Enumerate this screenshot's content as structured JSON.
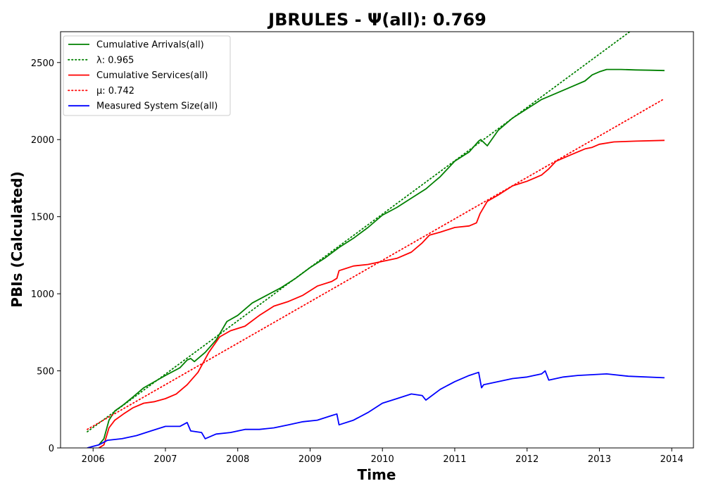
{
  "chart_data": {
    "type": "line",
    "title": "JBRULES -  Ψ(all): 0.769",
    "xlabel": "Time",
    "ylabel": "PBIs (Calculated)",
    "xlim": [
      2005.55,
      2014.3
    ],
    "ylim": [
      0,
      2700
    ],
    "xticks": [
      2006,
      2007,
      2008,
      2009,
      2010,
      2011,
      2012,
      2013,
      2014
    ],
    "xtick_labels": [
      "2006",
      "2007",
      "2008",
      "2009",
      "2010",
      "2011",
      "2012",
      "2013",
      "2014"
    ],
    "yticks": [
      0,
      500,
      1000,
      1500,
      2000,
      2500
    ],
    "ytick_labels": [
      "0",
      "500",
      "1000",
      "1500",
      "2000",
      "2500"
    ],
    "grid": false,
    "legend_position": "top-left",
    "series": [
      {
        "name": "Cumulative Arrivals(all)",
        "style": "solid",
        "color": "#008000",
        "x": [
          2006.08,
          2006.15,
          2006.22,
          2006.3,
          2006.42,
          2006.55,
          2006.7,
          2006.85,
          2007.0,
          2007.2,
          2007.3,
          2007.35,
          2007.4,
          2007.55,
          2007.7,
          2007.85,
          2008.0,
          2008.2,
          2008.4,
          2008.6,
          2008.8,
          2009.0,
          2009.2,
          2009.4,
          2009.6,
          2009.8,
          2010.0,
          2010.2,
          2010.4,
          2010.6,
          2010.7,
          2010.8,
          2011.0,
          2011.2,
          2011.33,
          2011.36,
          2011.45,
          2011.6,
          2011.8,
          2012.0,
          2012.2,
          2012.4,
          2012.6,
          2012.8,
          2012.9,
          2013.0,
          2013.1,
          2013.3,
          2013.5,
          2013.7,
          2013.9
        ],
        "y": [
          20,
          60,
          180,
          240,
          280,
          330,
          390,
          430,
          470,
          520,
          570,
          580,
          560,
          620,
          700,
          820,
          860,
          940,
          990,
          1040,
          1100,
          1170,
          1230,
          1300,
          1360,
          1430,
          1510,
          1560,
          1620,
          1680,
          1720,
          1760,
          1860,
          1920,
          1990,
          2000,
          1960,
          2060,
          2140,
          2200,
          2260,
          2300,
          2340,
          2380,
          2420,
          2440,
          2455,
          2455,
          2452,
          2450,
          2448
        ]
      },
      {
        "name": "λ: 0.965",
        "style": "dotted",
        "color": "#008000",
        "x": [
          2005.92,
          2013.42
        ],
        "y": [
          105,
          2700
        ]
      },
      {
        "name": "Cumulative Services(all)",
        "style": "solid",
        "color": "#ff0000",
        "x": [
          2006.08,
          2006.15,
          2006.22,
          2006.3,
          2006.42,
          2006.55,
          2006.7,
          2006.85,
          2007.0,
          2007.15,
          2007.3,
          2007.45,
          2007.6,
          2007.75,
          2007.9,
          2008.1,
          2008.3,
          2008.5,
          2008.7,
          2008.9,
          2009.1,
          2009.3,
          2009.37,
          2009.4,
          2009.6,
          2009.8,
          2010.0,
          2010.2,
          2010.4,
          2010.55,
          2010.65,
          2010.8,
          2011.0,
          2011.2,
          2011.3,
          2011.35,
          2011.45,
          2011.6,
          2011.8,
          2012.0,
          2012.2,
          2012.3,
          2012.4,
          2012.6,
          2012.8,
          2012.9,
          2013.0,
          2013.2,
          2013.5,
          2013.9
        ],
        "y": [
          0,
          20,
          130,
          180,
          220,
          260,
          290,
          300,
          320,
          350,
          410,
          490,
          620,
          720,
          760,
          790,
          860,
          920,
          950,
          990,
          1050,
          1080,
          1100,
          1150,
          1180,
          1190,
          1210,
          1230,
          1270,
          1330,
          1380,
          1400,
          1430,
          1440,
          1460,
          1520,
          1600,
          1640,
          1700,
          1730,
          1770,
          1810,
          1860,
          1900,
          1940,
          1950,
          1970,
          1985,
          1990,
          1995
        ]
      },
      {
        "name": "μ: 0.742",
        "style": "dotted",
        "color": "#ff0000",
        "x": [
          2005.92,
          2013.88
        ],
        "y": [
          120,
          2260
        ]
      },
      {
        "name": "Measured System Size(all)",
        "style": "solid",
        "color": "#0000ff",
        "x": [
          2005.92,
          2006.0,
          2006.08,
          2006.2,
          2006.4,
          2006.6,
          2006.8,
          2007.0,
          2007.2,
          2007.3,
          2007.35,
          2007.5,
          2007.55,
          2007.7,
          2007.9,
          2008.1,
          2008.3,
          2008.5,
          2008.7,
          2008.9,
          2009.1,
          2009.3,
          2009.37,
          2009.4,
          2009.6,
          2009.8,
          2010.0,
          2010.2,
          2010.4,
          2010.55,
          2010.6,
          2010.8,
          2011.0,
          2011.2,
          2011.33,
          2011.37,
          2011.4,
          2011.6,
          2011.8,
          2012.0,
          2012.2,
          2012.25,
          2012.3,
          2012.5,
          2012.7,
          2012.9,
          2013.1,
          2013.4,
          2013.9
        ],
        "y": [
          0,
          10,
          20,
          50,
          60,
          80,
          110,
          140,
          140,
          165,
          110,
          100,
          60,
          90,
          100,
          120,
          120,
          130,
          150,
          170,
          180,
          210,
          220,
          150,
          180,
          230,
          290,
          320,
          350,
          340,
          310,
          380,
          430,
          470,
          490,
          390,
          410,
          430,
          450,
          460,
          480,
          500,
          440,
          460,
          470,
          475,
          480,
          465,
          455
        ]
      }
    ]
  }
}
